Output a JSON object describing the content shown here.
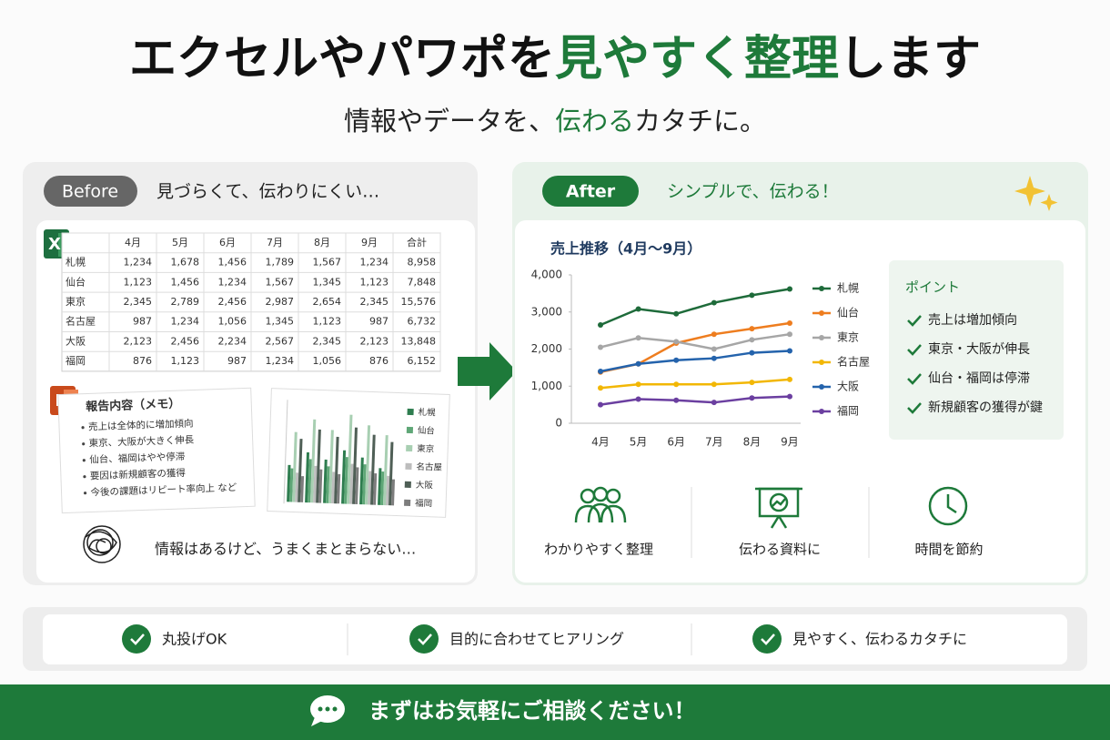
{
  "header": {
    "title_part1": "エクセルやパワポを",
    "title_highlight": "見やすく整理",
    "title_part2": "します",
    "subtitle_part1": "情報やデータを、",
    "subtitle_highlight": "伝わる",
    "subtitle_part2": "カタチに。"
  },
  "before": {
    "badge": "Before",
    "caption": "見づらくて、伝わりにくい…",
    "table": {
      "header": [
        "4月",
        "5月",
        "6月",
        "7月",
        "8月",
        "9月",
        "合計"
      ],
      "rows": [
        {
          "name": "札幌",
          "values": [
            "1,234",
            "1,678",
            "1,456",
            "1,789",
            "1,567",
            "1,234",
            "8,958"
          ]
        },
        {
          "name": "仙台",
          "values": [
            "1,123",
            "1,456",
            "1,234",
            "1,567",
            "1,345",
            "1,123",
            "7,848"
          ]
        },
        {
          "name": "東京",
          "values": [
            "2,345",
            "2,789",
            "2,456",
            "2,987",
            "2,654",
            "2,345",
            "15,576"
          ]
        },
        {
          "name": "名古屋",
          "values": [
            "987",
            "1,234",
            "1,056",
            "1,345",
            "1,123",
            "987",
            "6,732"
          ]
        },
        {
          "name": "大阪",
          "values": [
            "2,123",
            "2,456",
            "2,234",
            "2,567",
            "2,345",
            "2,123",
            "13,848"
          ]
        },
        {
          "name": "福岡",
          "values": [
            "876",
            "1,123",
            "987",
            "1,234",
            "1,056",
            "876",
            "6,152"
          ]
        }
      ]
    },
    "memo": {
      "title": "報告内容（メモ）",
      "items": [
        "売上は全体的に増加傾向",
        "東京、大阪が大きく伸長",
        "仙台、福岡はやや停滞",
        "要因は新規顧客の獲得",
        "今後の課題はリピート率向上  など"
      ]
    },
    "mini_chart": {
      "type": "bar",
      "series": [
        {
          "name": "札幌",
          "color": "#2e7d4f",
          "values": [
            1234,
            1678,
            1456,
            1789,
            1567,
            1234
          ]
        },
        {
          "name": "仙台",
          "color": "#5fa777",
          "values": [
            1123,
            1456,
            1234,
            1567,
            1345,
            1123
          ]
        },
        {
          "name": "東京",
          "color": "#a8cfb2",
          "values": [
            2345,
            2789,
            2456,
            2987,
            2654,
            2345
          ]
        },
        {
          "name": "名古屋",
          "color": "#bdbdbd",
          "values": [
            987,
            1234,
            1056,
            1345,
            1123,
            987
          ]
        },
        {
          "name": "大阪",
          "color": "#4f5f56",
          "values": [
            2123,
            2456,
            2234,
            2567,
            2345,
            2123
          ]
        },
        {
          "name": "福岡",
          "color": "#7d7d7d",
          "values": [
            876,
            1123,
            987,
            1234,
            1056,
            876
          ]
        }
      ]
    },
    "footer_text": "情報はあるけど、うまくまとまらない…"
  },
  "after": {
    "badge": "After",
    "caption": "シンプルで、伝わる！",
    "chart": {
      "type": "line",
      "title": "売上推移（4月〜9月）",
      "categories": [
        "4月",
        "5月",
        "6月",
        "7月",
        "8月",
        "9月"
      ],
      "ylim": [
        0,
        4000
      ],
      "yticks": [
        0,
        {
          "value": 1000,
          "label": "1,000"
        },
        {
          "value": 2000,
          "label": "2,000"
        },
        {
          "value": 3000,
          "label": "3,000"
        },
        {
          "value": 4000,
          "label": "4,000"
        }
      ],
      "series": [
        {
          "name": "札幌",
          "color": "#1e6b3a",
          "values": [
            2650,
            3080,
            2950,
            3250,
            3450,
            3620
          ]
        },
        {
          "name": "仙台",
          "color": "#ee7d1f",
          "values": [
            1380,
            1600,
            2160,
            2400,
            2550,
            2700
          ]
        },
        {
          "name": "東京",
          "color": "#a6a6a6",
          "values": [
            2050,
            2300,
            2200,
            2000,
            2250,
            2400
          ]
        },
        {
          "name": "名古屋",
          "color": "#f2b705",
          "values": [
            950,
            1050,
            1050,
            1050,
            1100,
            1180
          ]
        },
        {
          "name": "大阪",
          "color": "#2463ac",
          "values": [
            1400,
            1600,
            1700,
            1750,
            1900,
            1950
          ]
        },
        {
          "name": "福岡",
          "color": "#6b3fa0",
          "values": [
            500,
            650,
            620,
            560,
            680,
            720
          ]
        }
      ]
    },
    "points": {
      "title": "ポイント",
      "items": [
        "売上は増加傾向",
        "東京・大阪が伸長",
        "仙台・福岡は停滞",
        "新規顧客の獲得が鍵"
      ]
    },
    "features": [
      "わかりやすく整理",
      "伝わる資料に",
      "時間を節約"
    ]
  },
  "benefits": [
    "丸投げOK",
    "目的に合わせてヒアリング",
    "見やすく、伝わるカタチに"
  ],
  "cta": "まずはお気軽にご相談ください！"
}
